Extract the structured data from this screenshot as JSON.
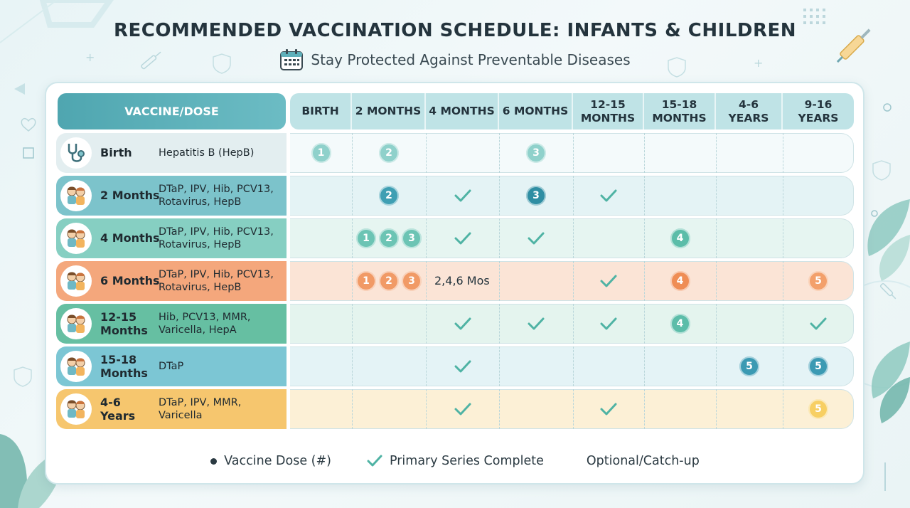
{
  "title": "RECOMMENDED VACCINATION SCHEDULE: INFANTS & CHILDREN",
  "subtitle": "Stay Protected Against Preventable Diseases",
  "table": {
    "vaccine_header": "VACCINE/DOSE",
    "columns": [
      {
        "label": "BIRTH"
      },
      {
        "label": "2 MONTHS"
      },
      {
        "label": "4 MONTHS"
      },
      {
        "label": "6 MONTHS"
      },
      {
        "label": "12-15\nMONTHS"
      },
      {
        "label": "15-18\nMONTHS"
      },
      {
        "label": "4-6\nYEARS"
      },
      {
        "label": "9-16\nYEARS"
      }
    ],
    "rows": [
      {
        "age": "Birth",
        "vaccines": "Hepatitis B (HepB)",
        "label_color": "#e3eef0",
        "row_color": "#f4fafb",
        "icon": "stethoscope-icon",
        "cells": [
          [
            "d1c"
          ],
          [
            "d2c"
          ],
          [],
          [
            "d3c"
          ],
          [],
          [],
          [],
          []
        ]
      },
      {
        "age": "2 Months",
        "vaccines": "DTaP, IPV, Hib, PCV13,\nRotavirus, HepB",
        "label_color": "#7cc3cb",
        "row_color": "#e4f3f5",
        "icon": "children-icon",
        "cells": [
          [],
          [
            "d2b"
          ],
          [
            "check"
          ],
          [
            "d3b"
          ],
          [
            "check"
          ],
          [],
          [],
          []
        ]
      },
      {
        "age": "4 Months",
        "vaccines": "DTaP, IPV, Hib, PCV13,\nRotavirus, HepB",
        "label_color": "#86cfc2",
        "row_color": "#e6f5f1",
        "icon": "children-icon",
        "cells": [
          [],
          [
            "d1g",
            "d2g",
            "d3g"
          ],
          [
            "check"
          ],
          [
            "check"
          ],
          [],
          [
            "d4g"
          ],
          [],
          []
        ]
      },
      {
        "age": "6 Months",
        "vaccines": "DTaP, IPV, Hib, PCV13,\nRotavirus, HepB",
        "label_color": "#f4a77c",
        "row_color": "#fbe4d6",
        "icon": "children-icon",
        "cells": [
          [],
          [
            "d1o",
            "d2o",
            "d3o"
          ],
          [
            "text"
          ],
          [],
          [
            "check"
          ],
          [
            "d4o"
          ],
          [],
          [
            "d5o"
          ]
        ]
      },
      {
        "age": "12-15\nMonths",
        "vaccines": "Hib, PCV13, MMR,\nVaricella, HepA",
        "label_color": "#66bfa2",
        "row_color": "#e4f4ee",
        "icon": "children-icon",
        "cells": [
          [],
          [],
          [
            "check"
          ],
          [
            "check"
          ],
          [
            "check"
          ],
          [
            "d4g"
          ],
          [],
          [
            "check"
          ]
        ]
      },
      {
        "age": "15-18\nMonths",
        "vaccines": "DTaP",
        "label_color": "#7cc6d4",
        "row_color": "#e4f3f6",
        "icon": "children-icon",
        "cells": [
          [],
          [],
          [
            "check"
          ],
          [],
          [],
          [],
          [
            "d5b"
          ],
          [
            "d5b"
          ]
        ]
      },
      {
        "age": "4-6\nYears",
        "vaccines": "DTaP, IPV, MMR, Varicella",
        "label_color": "#f6c66e",
        "row_color": "#fcf0d6",
        "icon": "children-icon",
        "cells": [
          [],
          [],
          [
            "check"
          ],
          [],
          [
            "check"
          ],
          [],
          [],
          [
            "d5y"
          ]
        ]
      }
    ],
    "dose_text": "2,4,6 Mos"
  },
  "dose_styles": {
    "d1c": {
      "n": "1",
      "bg": "#8fd1cb"
    },
    "d2c": {
      "n": "2",
      "bg": "#8fd1cb"
    },
    "d3c": {
      "n": "3",
      "bg": "#8fd1cb"
    },
    "d2b": {
      "n": "2",
      "bg": "#3f9fb3"
    },
    "d3b": {
      "n": "3",
      "bg": "#2f8ea3"
    },
    "d1g": {
      "n": "1",
      "bg": "#6cc4b4"
    },
    "d2g": {
      "n": "2",
      "bg": "#6cc4b4"
    },
    "d3g": {
      "n": "3",
      "bg": "#6cc4b4"
    },
    "d4g": {
      "n": "4",
      "bg": "#5cbda9"
    },
    "d1o": {
      "n": "1",
      "bg": "#f19a66"
    },
    "d2o": {
      "n": "2",
      "bg": "#f19a66"
    },
    "d3o": {
      "n": "3",
      "bg": "#f19a66"
    },
    "d4o": {
      "n": "4",
      "bg": "#ef8d55"
    },
    "d5o": {
      "n": "5",
      "bg": "#f3a06b"
    },
    "d5b": {
      "n": "5",
      "bg": "#3b9ab3"
    },
    "d5y": {
      "n": "5",
      "bg": "#f7cf63"
    }
  },
  "legend": {
    "dose": "Vaccine Dose (#)",
    "complete": "Primary Series Complete",
    "optional": "Optional/Catch-up"
  },
  "colors": {
    "check": "#4fb3a4",
    "accent": "#4fa6b0"
  }
}
